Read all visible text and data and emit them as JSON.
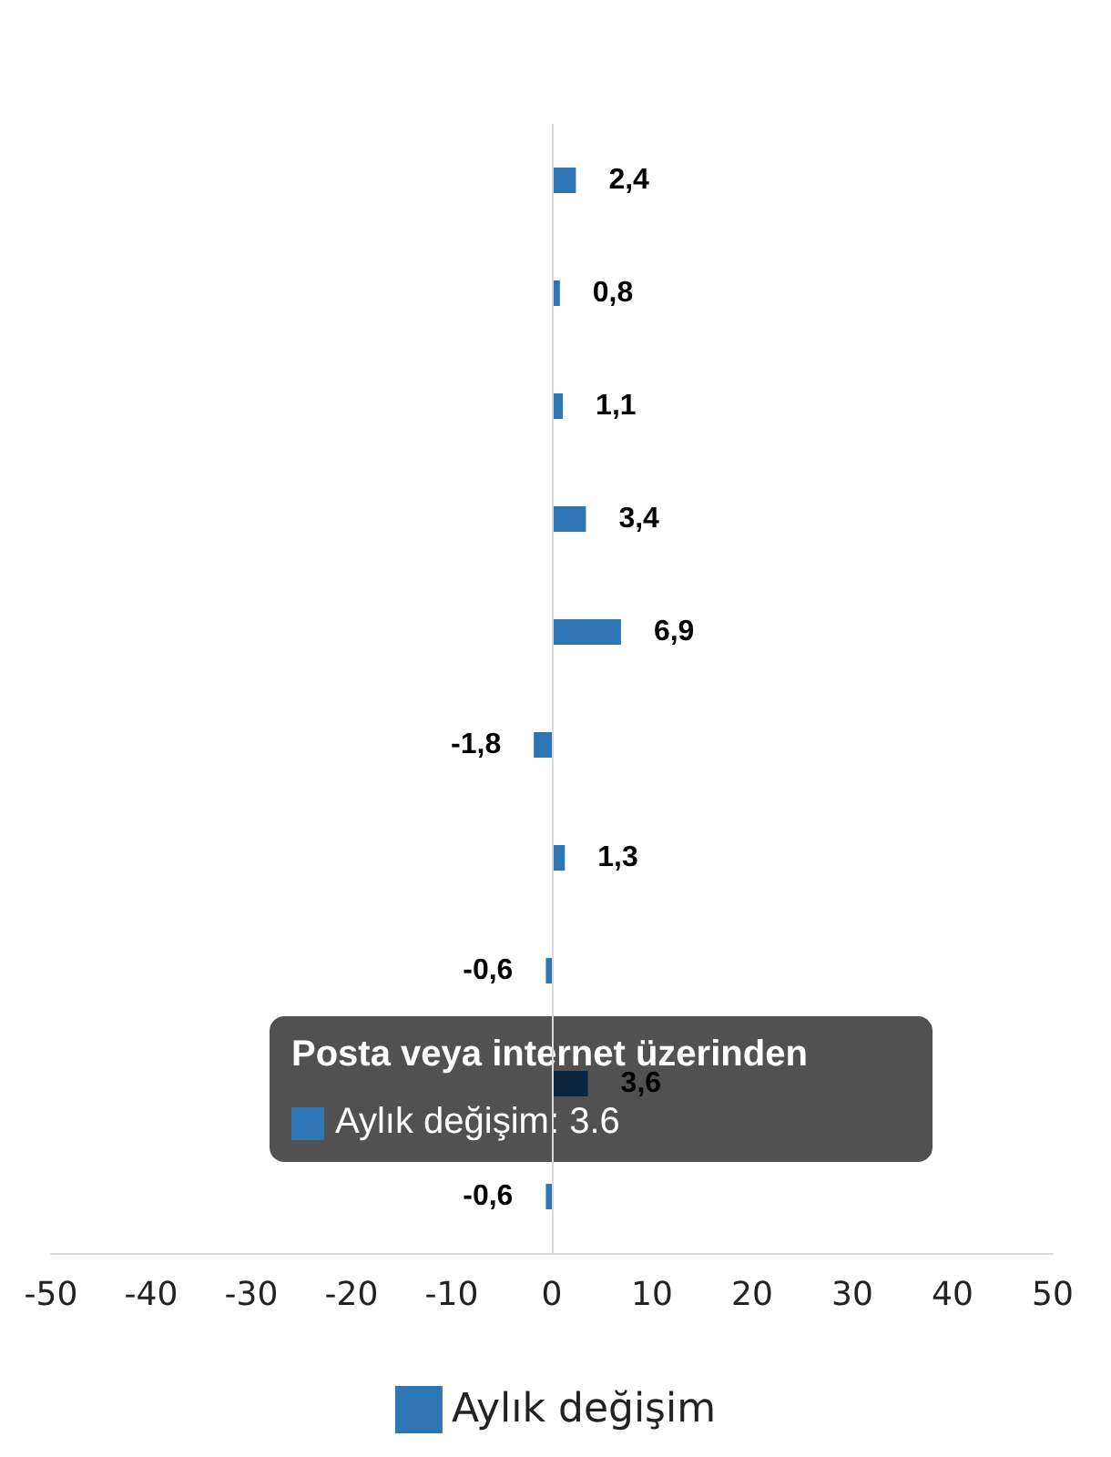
{
  "chart_data": {
    "type": "bar",
    "orientation": "horizontal",
    "categories": [
      null,
      null,
      null,
      null,
      null,
      null,
      null,
      null,
      null,
      null
    ],
    "series": [
      {
        "name": "Aylık değişim",
        "color": "#2e75b6",
        "colors": [
          "#2e75b6",
          "#2e75b6",
          "#2e75b6",
          "#2e75b6",
          "#2e75b6",
          "#2e75b6",
          "#2e75b6",
          "#2e75b6",
          "#0b2540",
          "#2e75b6"
        ],
        "values": [
          2.4,
          0.8,
          1.1,
          3.4,
          6.9,
          -1.8,
          1.3,
          -0.6,
          3.6,
          -0.6
        ],
        "value_labels": [
          "2,4",
          "0,8",
          "1,1",
          "3,4",
          "6,9",
          "-1,8",
          "1,3",
          "-0,6",
          "3,6",
          "-0,6"
        ]
      }
    ],
    "ref_lines": [
      {
        "axis": "x",
        "value": 0,
        "color": "#d9d9d9"
      }
    ],
    "xlim": [
      -50,
      50
    ],
    "xticks": [
      -50,
      -40,
      -30,
      -20,
      -10,
      0,
      10,
      20,
      30,
      40,
      50
    ],
    "grid": false,
    "legend": "bottom",
    "annotations": [
      "Posta veya internet üzerinden",
      "Aylık değişim: 3.6"
    ]
  }
}
